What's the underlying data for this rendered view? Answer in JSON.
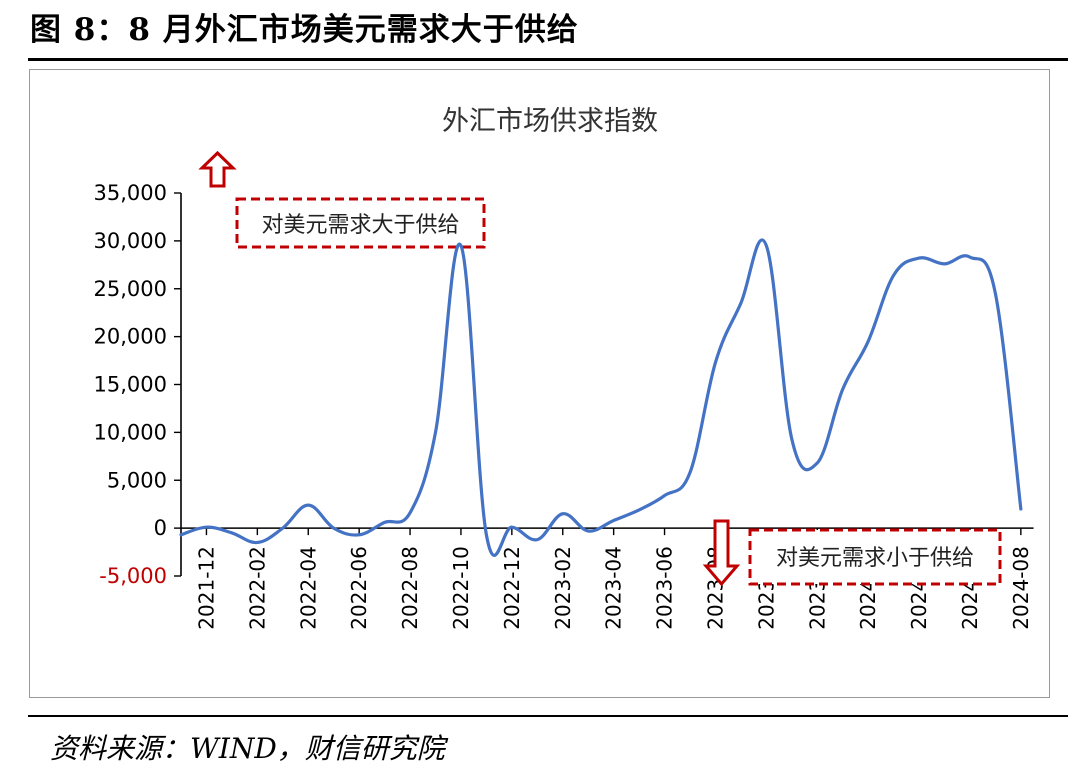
{
  "figure": {
    "title": "图 8：8 月外汇市场美元需求大于供给",
    "source": "资料来源：WIND，财信研究院"
  },
  "chart_data": {
    "type": "line",
    "title": "外汇市场供求指数",
    "xlabel": "",
    "ylabel": "",
    "ylim": [
      -5000,
      35000
    ],
    "y_ticks": [
      "35,000",
      "30,000",
      "25,000",
      "20,000",
      "15,000",
      "10,000",
      "5,000",
      "0",
      "-5,000"
    ],
    "y_tick_values": [
      35000,
      30000,
      25000,
      20000,
      15000,
      10000,
      5000,
      0,
      -5000
    ],
    "x_ticks": [
      "2021-12",
      "2022-02",
      "2022-04",
      "2022-06",
      "2022-08",
      "2022-10",
      "2022-12",
      "2023-02",
      "2023-04",
      "2023-06",
      "2023-08",
      "2023-10",
      "2023-12",
      "2024-02",
      "2024-04",
      "2024-06",
      "2024-08"
    ],
    "grid": false,
    "series": [
      {
        "color": "#4472c4",
        "x": [
          "2021-11",
          "2021-12",
          "2022-01",
          "2022-02",
          "2022-03",
          "2022-04",
          "2022-05",
          "2022-06",
          "2022-07",
          "2022-08",
          "2022-09",
          "2022-10",
          "2022-11",
          "2022-12",
          "2023-01",
          "2023-02",
          "2023-03",
          "2023-04",
          "2023-05",
          "2023-06",
          "2023-07",
          "2023-08",
          "2023-09",
          "2023-10",
          "2023-11",
          "2023-12",
          "2024-01",
          "2024-02",
          "2024-03",
          "2024-04",
          "2024-05",
          "2024-06",
          "2024-07",
          "2024-08"
        ],
        "values": [
          -700,
          100,
          -500,
          -1500,
          0,
          2400,
          0,
          -700,
          600,
          1600,
          10000,
          29500,
          -700,
          100,
          -1200,
          1500,
          -300,
          800,
          1900,
          3400,
          5800,
          17300,
          23500,
          29500,
          9300,
          6800,
          14500,
          19500,
          26400,
          28200,
          27600,
          28300,
          24500,
          2000
        ]
      }
    ],
    "annotations": [
      {
        "text": "对美元需求大于供给",
        "arrow": "up",
        "color": "#c00000"
      },
      {
        "text": "对美元需求小于供给",
        "arrow": "down",
        "color": "#c00000"
      }
    ],
    "negative_tick_color": "#c00000"
  }
}
